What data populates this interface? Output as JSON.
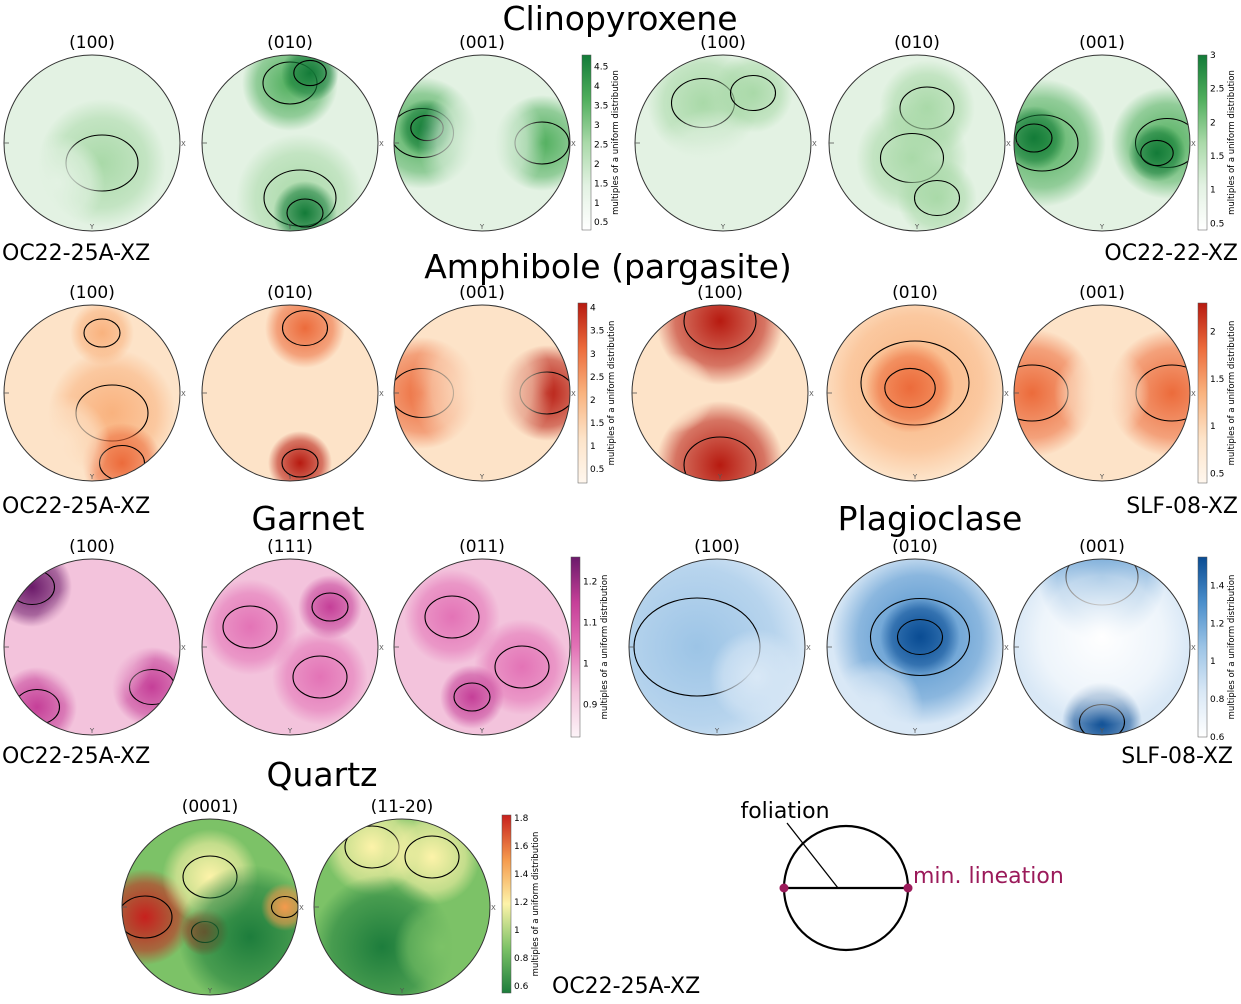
{
  "cbar_label": "multiples of a uniform distribution",
  "axes": {
    "x": "X",
    "y": "Y"
  },
  "legend": {
    "foliation": "foliation",
    "lineation": "min. lineation",
    "accent": "#9b1a5a"
  },
  "sections": [
    {
      "title": "Clinopyroxene",
      "groups": [
        {
          "sample": "OC22-25A-XZ",
          "planes": [
            "(100)",
            "(010)",
            "(001)"
          ],
          "palette": "green",
          "ticks": [
            "4.5",
            "4",
            "3.5",
            "3",
            "2.5",
            "2",
            "1.5",
            "1",
            "0.5"
          ],
          "range": [
            0.3,
            4.8
          ]
        },
        {
          "sample": "OC22-22-XZ",
          "planes": [
            "(100)",
            "(010)",
            "(001)"
          ],
          "palette": "green",
          "ticks": [
            "3",
            "2.5",
            "2",
            "1.5",
            "1",
            "0.5"
          ],
          "range": [
            0.4,
            3.0
          ]
        }
      ]
    },
    {
      "title": "Amphibole (pargasite)",
      "groups": [
        {
          "sample": "OC22-25A-XZ",
          "planes": [
            "(100)",
            "(010)",
            "(001)"
          ],
          "palette": "orange",
          "ticks": [
            "4",
            "3.5",
            "3",
            "2.5",
            "2",
            "1.5",
            "1",
            "0.5"
          ],
          "range": [
            0.2,
            4.1
          ]
        },
        {
          "sample": "SLF-08-XZ",
          "planes": [
            "(100)",
            "(010)",
            "(001)"
          ],
          "palette": "orange",
          "ticks": [
            "2",
            "1.5",
            "1",
            "0.5"
          ],
          "range": [
            0.4,
            2.3
          ]
        }
      ]
    },
    {
      "groups": [
        {
          "title": "Garnet",
          "sample": "OC22-25A-XZ",
          "planes": [
            "(100)",
            "(111)",
            "(011)"
          ],
          "palette": "pink",
          "ticks": [
            "1.2",
            "1.1",
            "1",
            "0.9"
          ],
          "range": [
            0.82,
            1.26
          ]
        },
        {
          "title": "Plagioclase",
          "sample": "SLF-08-XZ",
          "planes": [
            "(100)",
            "(010)",
            "(001)"
          ],
          "palette": "blue",
          "ticks": [
            "1.4",
            "1.2",
            "1",
            "0.8",
            "0.6"
          ],
          "range": [
            0.6,
            1.55
          ]
        }
      ]
    },
    {
      "title": "Quartz",
      "groups": [
        {
          "sample": "OC22-25A-XZ",
          "planes": [
            "(0001)",
            "(11-20)"
          ],
          "palette": "rdylgn",
          "ticks": [
            "1.8",
            "1.6",
            "1.4",
            "1.2",
            "1",
            "0.8",
            "0.6"
          ],
          "range": [
            0.55,
            1.82
          ]
        }
      ]
    }
  ]
}
